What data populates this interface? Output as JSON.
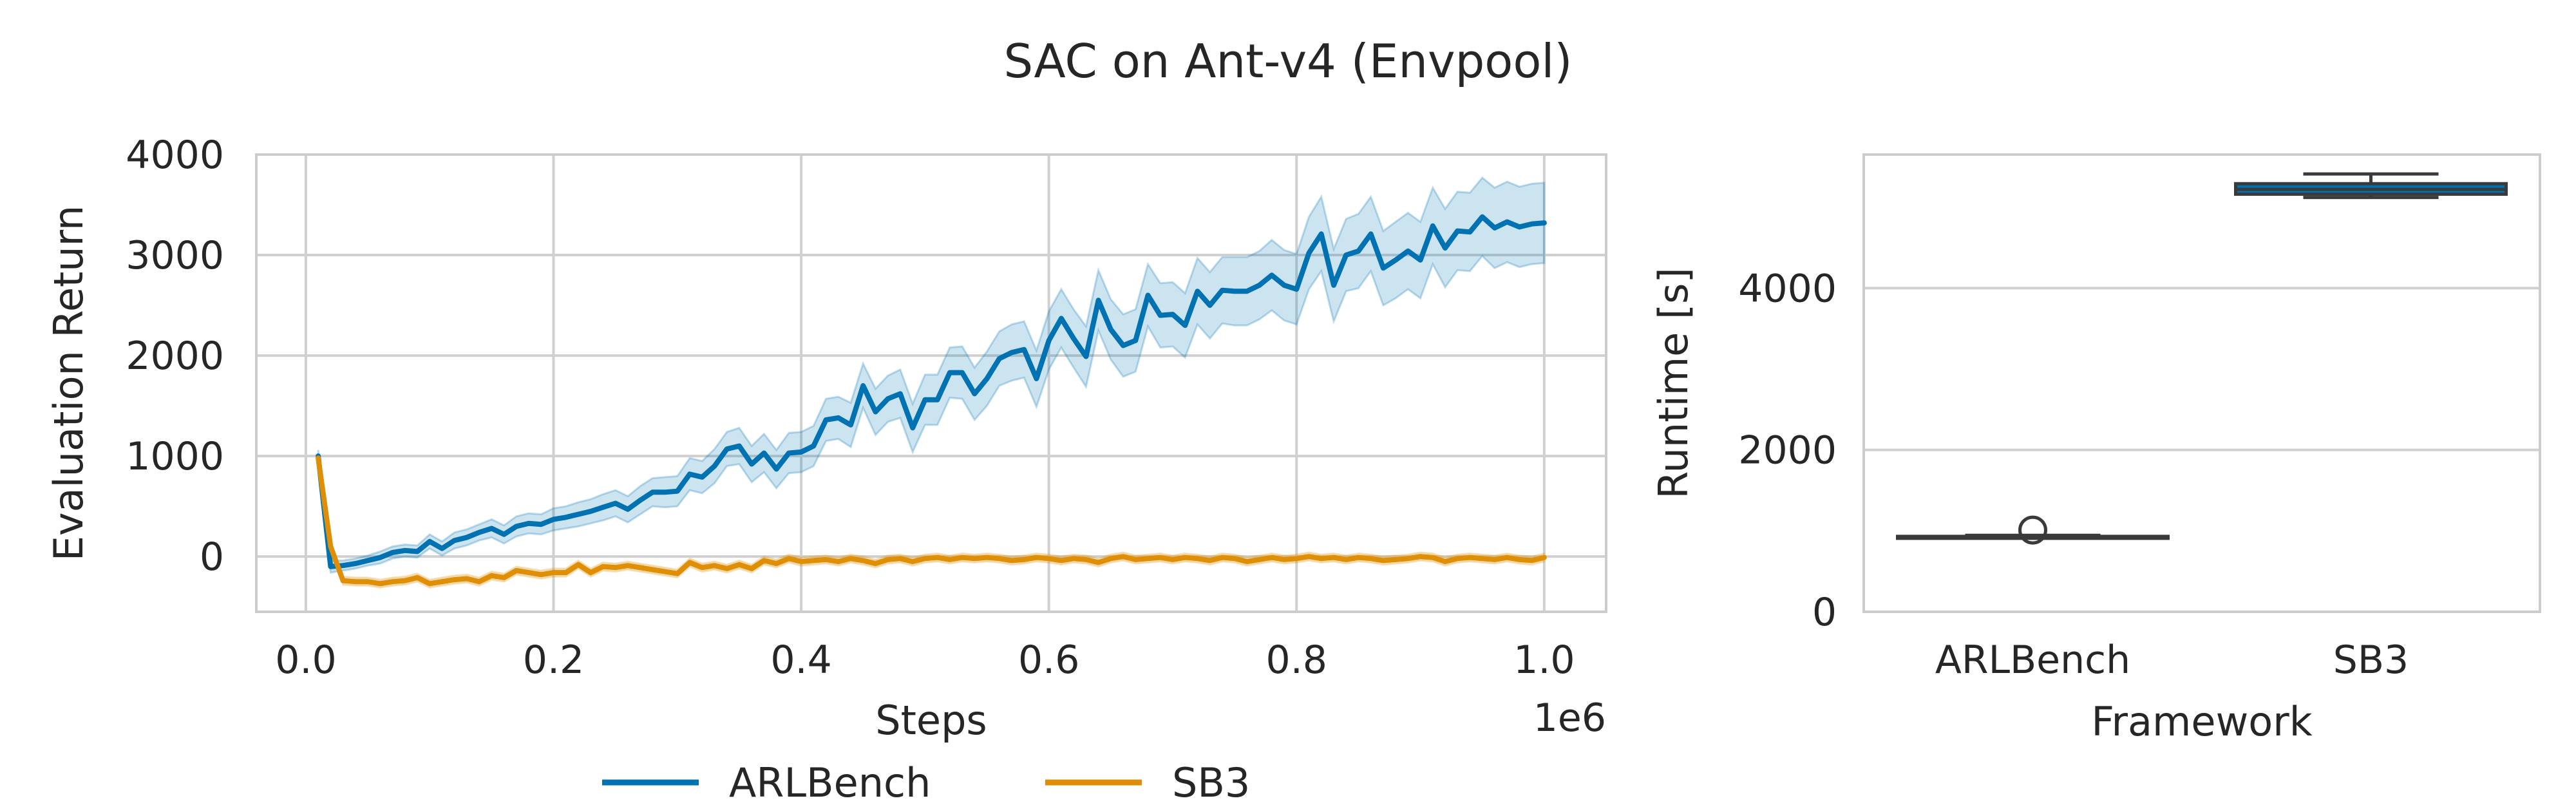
{
  "figure": {
    "title": "SAC on Ant-v4 (Envpool)"
  },
  "colors": {
    "arlbench": "#0072b2",
    "sb3": "#de8f05",
    "box_edge": "#3a3a3a"
  },
  "chart_data": [
    {
      "type": "line",
      "xlabel": "Steps",
      "ylabel": "Evaluation Return",
      "x_offset_label": "1e6",
      "xlim": [
        -0.04,
        1.05
      ],
      "ylim": [
        -550,
        4000
      ],
      "xticks": [
        0.0,
        0.2,
        0.4,
        0.6,
        0.8,
        1.0
      ],
      "xtick_labels": [
        "0.0",
        "0.2",
        "0.4",
        "0.6",
        "0.8",
        "1.0"
      ],
      "yticks": [
        0,
        1000,
        2000,
        3000,
        4000
      ],
      "ytick_labels": [
        "0",
        "1000",
        "2000",
        "3000",
        "4000"
      ],
      "grid": true,
      "legend_position": "bottom-center",
      "series": [
        {
          "name": "ARLBench",
          "color": "#0072b2",
          "x": [
            0.01,
            0.02,
            0.03,
            0.04,
            0.05,
            0.06,
            0.07,
            0.08,
            0.09,
            0.1,
            0.11,
            0.12,
            0.13,
            0.14,
            0.15,
            0.16,
            0.17,
            0.18,
            0.19,
            0.2,
            0.21,
            0.22,
            0.23,
            0.24,
            0.25,
            0.26,
            0.27,
            0.28,
            0.29,
            0.3,
            0.31,
            0.32,
            0.33,
            0.34,
            0.35,
            0.36,
            0.37,
            0.38,
            0.39,
            0.4,
            0.41,
            0.42,
            0.43,
            0.44,
            0.45,
            0.46,
            0.47,
            0.48,
            0.49,
            0.5,
            0.51,
            0.52,
            0.53,
            0.54,
            0.55,
            0.56,
            0.57,
            0.58,
            0.59,
            0.6,
            0.61,
            0.62,
            0.63,
            0.64,
            0.65,
            0.66,
            0.67,
            0.68,
            0.69,
            0.7,
            0.71,
            0.72,
            0.73,
            0.74,
            0.75,
            0.76,
            0.77,
            0.78,
            0.79,
            0.8,
            0.81,
            0.82,
            0.83,
            0.84,
            0.85,
            0.86,
            0.87,
            0.88,
            0.89,
            0.9,
            0.91,
            0.92,
            0.93,
            0.94,
            0.95,
            0.96,
            0.97,
            0.98,
            0.99,
            1.0
          ],
          "y": [
            1000,
            -100,
            -90,
            -70,
            -40,
            -10,
            40,
            60,
            50,
            150,
            80,
            160,
            190,
            240,
            280,
            220,
            300,
            330,
            320,
            370,
            390,
            420,
            450,
            490,
            530,
            470,
            560,
            640,
            640,
            650,
            820,
            790,
            900,
            1070,
            1100,
            920,
            1030,
            870,
            1030,
            1040,
            1100,
            1360,
            1380,
            1310,
            1700,
            1440,
            1570,
            1620,
            1280,
            1560,
            1560,
            1830,
            1830,
            1620,
            1770,
            1970,
            2030,
            2060,
            1770,
            2150,
            2370,
            2170,
            1990,
            2550,
            2260,
            2100,
            2150,
            2600,
            2400,
            2410,
            2300,
            2640,
            2500,
            2650,
            2640,
            2640,
            2700,
            2800,
            2700,
            2660,
            3020,
            3210,
            2700,
            3000,
            3040,
            3210,
            2870,
            2950,
            3040,
            2950,
            3290,
            3070,
            3240,
            3230,
            3380,
            3270,
            3330,
            3280,
            3310,
            3320
          ],
          "band_halfwidth": [
            60,
            60,
            50,
            50,
            50,
            60,
            60,
            60,
            60,
            70,
            70,
            80,
            80,
            80,
            90,
            90,
            100,
            100,
            100,
            110,
            110,
            120,
            120,
            130,
            130,
            130,
            140,
            140,
            150,
            150,
            160,
            160,
            170,
            170,
            180,
            180,
            190,
            190,
            200,
            200,
            200,
            210,
            210,
            220,
            220,
            230,
            230,
            240,
            240,
            250,
            250,
            250,
            260,
            260,
            270,
            270,
            280,
            280,
            280,
            290,
            290,
            290,
            300,
            300,
            300,
            310,
            310,
            310,
            320,
            320,
            320,
            330,
            330,
            330,
            340,
            340,
            340,
            350,
            350,
            350,
            360,
            370,
            360,
            360,
            370,
            370,
            370,
            380,
            380,
            380,
            380,
            390,
            390,
            390,
            390,
            400,
            400,
            400,
            400,
            400
          ]
        },
        {
          "name": "SB3",
          "color": "#de8f05",
          "x": [
            0.01,
            0.02,
            0.03,
            0.04,
            0.05,
            0.06,
            0.07,
            0.08,
            0.09,
            0.1,
            0.11,
            0.12,
            0.13,
            0.14,
            0.15,
            0.16,
            0.17,
            0.18,
            0.19,
            0.2,
            0.21,
            0.22,
            0.23,
            0.24,
            0.25,
            0.26,
            0.27,
            0.28,
            0.29,
            0.3,
            0.31,
            0.32,
            0.33,
            0.34,
            0.35,
            0.36,
            0.37,
            0.38,
            0.39,
            0.4,
            0.41,
            0.42,
            0.43,
            0.44,
            0.45,
            0.46,
            0.47,
            0.48,
            0.49,
            0.5,
            0.51,
            0.52,
            0.53,
            0.54,
            0.55,
            0.56,
            0.57,
            0.58,
            0.59,
            0.6,
            0.61,
            0.62,
            0.63,
            0.64,
            0.65,
            0.66,
            0.67,
            0.68,
            0.69,
            0.7,
            0.71,
            0.72,
            0.73,
            0.74,
            0.75,
            0.76,
            0.77,
            0.78,
            0.79,
            0.8,
            0.81,
            0.82,
            0.83,
            0.84,
            0.85,
            0.86,
            0.87,
            0.88,
            0.89,
            0.9,
            0.91,
            0.92,
            0.93,
            0.94,
            0.95,
            0.96,
            0.97,
            0.98,
            0.99,
            1.0
          ],
          "y": [
            980,
            100,
            -240,
            -250,
            -250,
            -270,
            -250,
            -240,
            -210,
            -270,
            -250,
            -230,
            -220,
            -250,
            -190,
            -210,
            -140,
            -160,
            -180,
            -160,
            -160,
            -80,
            -160,
            -100,
            -110,
            -90,
            -110,
            -130,
            -150,
            -170,
            -60,
            -110,
            -90,
            -120,
            -80,
            -120,
            -40,
            -70,
            -20,
            -50,
            -40,
            -30,
            -50,
            -20,
            -40,
            -70,
            -30,
            -20,
            -50,
            -20,
            -10,
            -30,
            -10,
            -20,
            -10,
            -20,
            -40,
            -30,
            -10,
            -20,
            -40,
            -20,
            -30,
            -60,
            -20,
            0,
            -30,
            -20,
            -10,
            -30,
            -10,
            -20,
            -40,
            -10,
            -20,
            -50,
            -30,
            -10,
            -30,
            -20,
            0,
            -20,
            -10,
            -30,
            -10,
            -20,
            -40,
            -30,
            -20,
            0,
            -10,
            -50,
            -20,
            -10,
            -20,
            -30,
            -10,
            -30,
            -40,
            -10
          ],
          "band_halfwidth": [
            40,
            40,
            40,
            40,
            40,
            40,
            40,
            40,
            40,
            40,
            40,
            40,
            40,
            40,
            40,
            40,
            40,
            40,
            40,
            40,
            40,
            40,
            40,
            40,
            40,
            40,
            40,
            40,
            40,
            40,
            40,
            40,
            40,
            40,
            40,
            40,
            40,
            40,
            40,
            40,
            40,
            40,
            40,
            40,
            40,
            40,
            40,
            40,
            40,
            40,
            40,
            40,
            40,
            40,
            40,
            40,
            40,
            40,
            40,
            40,
            40,
            40,
            40,
            40,
            40,
            40,
            40,
            40,
            40,
            40,
            40,
            40,
            40,
            40,
            40,
            40,
            40,
            40,
            40,
            40,
            40,
            40,
            40,
            40,
            40,
            40,
            40,
            40,
            40,
            40,
            40,
            40,
            40,
            40,
            40,
            40,
            40,
            40,
            40,
            40
          ]
        }
      ]
    },
    {
      "type": "box",
      "xlabel": "Framework",
      "ylabel": "Runtime [s]",
      "ylim": [
        0,
        5650
      ],
      "yticks": [
        0,
        2000,
        4000
      ],
      "ytick_labels": [
        "0",
        "2000",
        "4000"
      ],
      "grid": true,
      "categories": [
        "ARLBench",
        "SB3"
      ],
      "boxes": [
        {
          "name": "ARLBench",
          "color": "#0072b2",
          "min": 915,
          "q1": 920,
          "median": 925,
          "q3": 932,
          "max": 945,
          "outliers": [
            1010
          ]
        },
        {
          "name": "SB3",
          "color": "#0072b2",
          "min": 5120,
          "q1": 5160,
          "median": 5220,
          "q3": 5290,
          "max": 5410,
          "outliers": []
        }
      ]
    }
  ]
}
